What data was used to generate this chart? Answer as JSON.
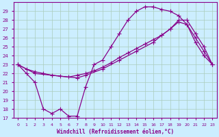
{
  "xlabel": "Windchill (Refroidissement éolien,°C)",
  "bg_color": "#cceeff",
  "grid_color": "#aaccbb",
  "line_color": "#880088",
  "xlim": [
    -0.5,
    23.5
  ],
  "ylim": [
    17,
    30
  ],
  "yticks": [
    17,
    18,
    19,
    20,
    21,
    22,
    23,
    24,
    25,
    26,
    27,
    28,
    29
  ],
  "xticks": [
    0,
    1,
    2,
    3,
    4,
    5,
    6,
    7,
    8,
    9,
    10,
    11,
    12,
    13,
    14,
    15,
    16,
    17,
    18,
    19,
    20,
    21,
    22,
    23
  ],
  "line1_x": [
    0,
    1,
    2,
    3,
    4,
    5,
    6,
    7,
    8,
    9,
    10,
    11,
    12,
    13,
    14,
    15,
    16,
    17,
    18,
    19,
    20,
    21,
    22,
    23
  ],
  "line1_y": [
    23,
    22,
    21,
    18,
    17.5,
    18,
    17.2,
    17.2,
    20.5,
    23,
    23.5,
    25,
    26.5,
    28,
    29,
    29.5,
    29.5,
    29.2,
    29.0,
    28.5,
    27.5,
    26,
    24.5,
    23
  ],
  "line2_x": [
    0,
    1,
    2,
    3,
    4,
    5,
    6,
    7,
    8,
    9,
    10,
    11,
    12,
    13,
    14,
    15,
    16,
    17,
    18,
    19,
    20,
    21,
    22,
    23
  ],
  "line2_y": [
    23,
    22.5,
    22.2,
    22.0,
    21.8,
    21.7,
    21.6,
    21.8,
    22.0,
    22.3,
    22.7,
    23.2,
    23.8,
    24.3,
    24.8,
    25.3,
    25.8,
    26.3,
    27.0,
    28.0,
    28.0,
    26.5,
    25.0,
    23
  ],
  "line3_x": [
    0,
    2,
    7,
    8,
    10,
    12,
    14,
    16,
    17,
    18,
    19,
    20,
    21,
    22,
    23
  ],
  "line3_y": [
    23,
    22,
    21.5,
    21.8,
    22.5,
    23.5,
    24.5,
    25.5,
    26.3,
    27.0,
    27.8,
    27.5,
    25.5,
    24.0,
    23
  ]
}
